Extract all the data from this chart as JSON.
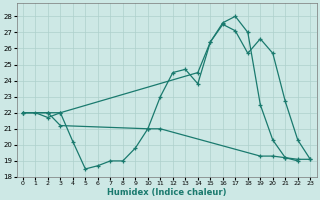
{
  "xlabel": "Humidex (Indice chaleur)",
  "bg_color": "#cde8e5",
  "grid_color": "#aed0cc",
  "line_color": "#1a7a6e",
  "xlim": [
    -0.5,
    23.5
  ],
  "ylim": [
    18,
    28.8
  ],
  "xticks": [
    0,
    1,
    2,
    3,
    4,
    5,
    6,
    7,
    8,
    9,
    10,
    11,
    12,
    13,
    14,
    15,
    16,
    17,
    18,
    19,
    20,
    21,
    22,
    23
  ],
  "yticks": [
    18,
    19,
    20,
    21,
    22,
    23,
    24,
    25,
    26,
    27,
    28
  ],
  "line1_x": [
    0,
    1,
    2,
    3,
    4,
    5,
    6,
    7,
    8,
    9,
    10,
    11,
    12,
    13,
    14,
    15,
    16,
    17,
    18,
    19,
    20,
    21,
    22
  ],
  "line1_y": [
    22.0,
    22.0,
    21.7,
    22.0,
    20.2,
    18.5,
    18.7,
    19.0,
    19.0,
    19.8,
    21.0,
    23.0,
    24.5,
    24.7,
    23.8,
    26.4,
    27.6,
    28.0,
    27.0,
    22.5,
    20.3,
    19.2,
    19.0
  ],
  "line2_x": [
    0,
    2,
    3,
    14,
    15,
    16,
    17,
    18,
    19,
    20,
    21,
    22,
    23
  ],
  "line2_y": [
    22.0,
    22.0,
    22.0,
    24.5,
    26.4,
    27.5,
    27.1,
    25.7,
    26.6,
    25.7,
    22.7,
    20.3,
    19.1
  ],
  "line3_x": [
    0,
    2,
    3,
    10,
    11,
    19,
    20,
    21,
    22,
    23
  ],
  "line3_y": [
    22.0,
    22.0,
    21.2,
    21.0,
    21.0,
    19.3,
    19.3,
    19.2,
    19.1,
    19.1
  ]
}
